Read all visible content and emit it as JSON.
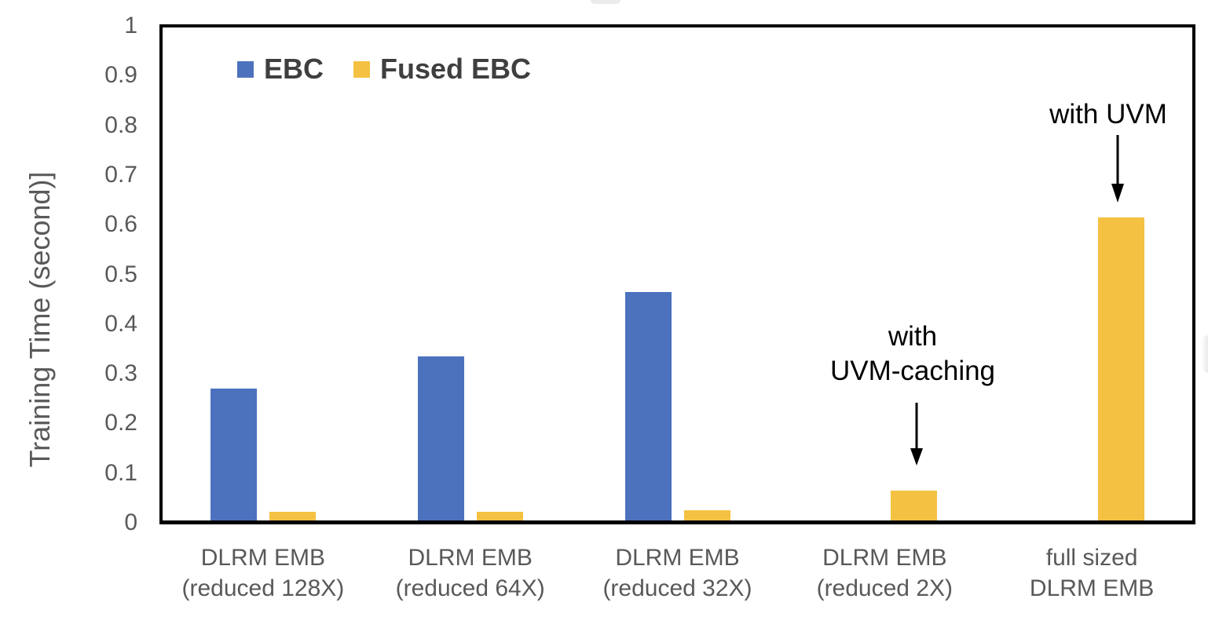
{
  "chart_data": {
    "type": "bar",
    "title": "",
    "ylabel": "Training Time (second)]",
    "xlabel": "",
    "ylim": [
      0,
      1
    ],
    "grid": false,
    "yticks": [
      {
        "label": "1",
        "value": 1.0
      },
      {
        "label": "0.9",
        "value": 0.9
      },
      {
        "label": "0.8",
        "value": 0.8
      },
      {
        "label": "0.7",
        "value": 0.7
      },
      {
        "label": "0.6",
        "value": 0.6
      },
      {
        "label": "0.5",
        "value": 0.5
      },
      {
        "label": "0.4",
        "value": 0.4
      },
      {
        "label": "0.3",
        "value": 0.3
      },
      {
        "label": "0.2",
        "value": 0.2
      },
      {
        "label": "0.1",
        "value": 0.1
      },
      {
        "label": "0",
        "value": 0.0
      }
    ],
    "categories": [
      {
        "line1": "DLRM EMB",
        "line2": "(reduced 128X)"
      },
      {
        "line1": "DLRM EMB",
        "line2": "(reduced 64X)"
      },
      {
        "line1": "DLRM EMB",
        "line2": "(reduced 32X)"
      },
      {
        "line1": "DLRM EMB",
        "line2": "(reduced 2X)"
      },
      {
        "line1": "full sized",
        "line2": "DLRM EMB"
      }
    ],
    "series": [
      {
        "name": "EBC",
        "color": "#4C72BE",
        "values": [
          0.265,
          0.33,
          0.46,
          0,
          0
        ]
      },
      {
        "name": "Fused EBC",
        "color": "#F4C142",
        "values": [
          0.018,
          0.018,
          0.02,
          0.06,
          0.61
        ]
      }
    ],
    "legend": {
      "position": "top-left-inside",
      "entries": [
        "EBC",
        "Fused EBC"
      ]
    },
    "annotations": [
      {
        "id": "uvm-caching",
        "lines": [
          "with",
          "UVM-caching"
        ],
        "series": "Fused EBC",
        "category_index": 3
      },
      {
        "id": "uvm",
        "lines": [
          "with UVM"
        ],
        "series": "Fused EBC",
        "category_index": 4
      }
    ]
  },
  "colors": {
    "axis": "#000000",
    "tick_text": "#595959",
    "category_text": "#595959",
    "legend_text": "#3f3f3f",
    "annotation_text": "#000000",
    "ebc": "#4C72BE",
    "fused_ebc": "#F4C142"
  }
}
